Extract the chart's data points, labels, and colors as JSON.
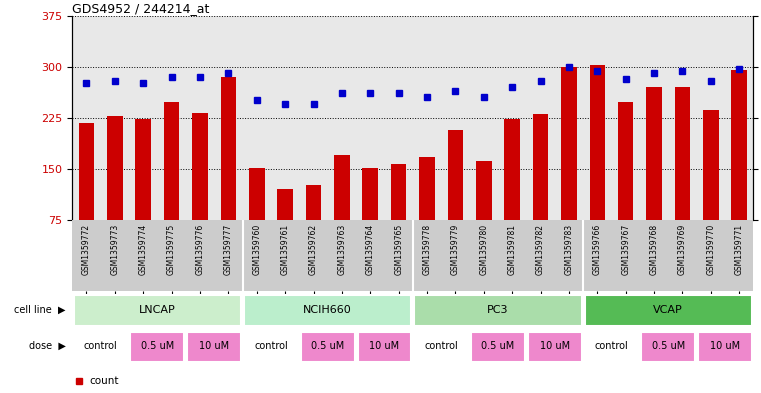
{
  "title": "GDS4952 / 244214_at",
  "samples": [
    "GSM1359772",
    "GSM1359773",
    "GSM1359774",
    "GSM1359775",
    "GSM1359776",
    "GSM1359777",
    "GSM1359760",
    "GSM1359761",
    "GSM1359762",
    "GSM1359763",
    "GSM1359764",
    "GSM1359765",
    "GSM1359778",
    "GSM1359779",
    "GSM1359780",
    "GSM1359781",
    "GSM1359782",
    "GSM1359783",
    "GSM1359766",
    "GSM1359767",
    "GSM1359768",
    "GSM1359769",
    "GSM1359770",
    "GSM1359771"
  ],
  "counts": [
    218,
    228,
    224,
    248,
    232,
    285,
    152,
    120,
    127,
    170,
    152,
    157,
    168,
    207,
    162,
    224,
    231,
    300,
    302,
    248,
    270,
    270,
    237,
    295
  ],
  "percentiles": [
    67,
    68,
    67,
    70,
    70,
    72,
    59,
    57,
    57,
    62,
    62,
    62,
    60,
    63,
    60,
    65,
    68,
    75,
    73,
    69,
    72,
    73,
    68,
    74
  ],
  "cell_lines": [
    "LNCAP",
    "NCIH660",
    "PC3",
    "VCAP"
  ],
  "cell_line_colors": [
    "#cceecc",
    "#bbeecc",
    "#aaddaa",
    "#66cc66"
  ],
  "bar_color": "#cc0000",
  "dot_color": "#0000cc",
  "ylim_left": [
    75,
    375
  ],
  "yticks_left": [
    75,
    150,
    225,
    300,
    375
  ],
  "ylim_right": [
    0,
    100
  ],
  "yticks_right": [
    0,
    25,
    50,
    75,
    100
  ],
  "bg_color": "#ffffff",
  "plot_bg": "#e8e8e8",
  "label_bg": "#cccccc"
}
